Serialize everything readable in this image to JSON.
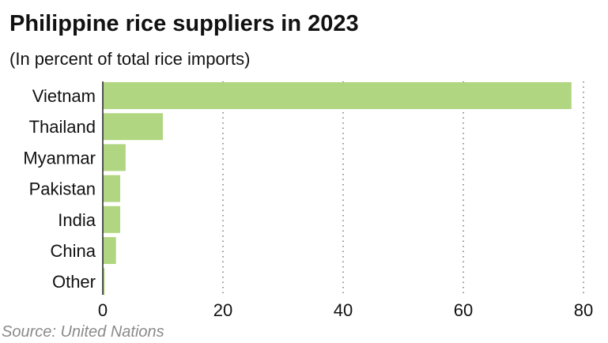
{
  "title": "Philippine rice suppliers in 2023",
  "subtitle": "(In percent of total rice imports)",
  "source": "Source: United Nations",
  "colors": {
    "bar": "#b1d681",
    "grid": "#555555",
    "axis": "#222222"
  },
  "chart_data": {
    "type": "bar",
    "orientation": "horizontal",
    "categories": [
      "Vietnam",
      "Thailand",
      "Myanmar",
      "Pakistan",
      "India",
      "China",
      "Other"
    ],
    "values": [
      78,
      10,
      3.8,
      2.9,
      2.9,
      2.2,
      0.3
    ],
    "xlim": [
      0,
      80
    ],
    "xticks": [
      0,
      20,
      40,
      60,
      80
    ],
    "xtick_labels": [
      "0",
      "20",
      "40",
      "60",
      "80"
    ],
    "grid": "vertical dotted"
  }
}
